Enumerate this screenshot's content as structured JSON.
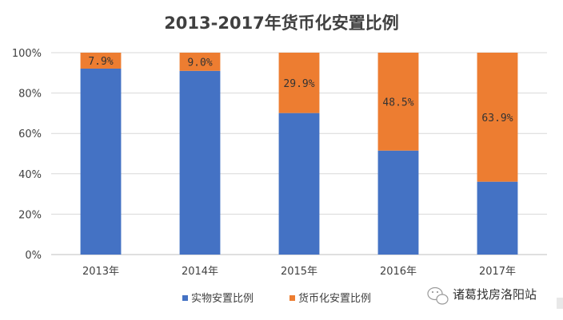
{
  "chart_data": {
    "type": "bar",
    "stacked": true,
    "title": "2013-2017年货币化安置比例",
    "categories": [
      "2013年",
      "2014年",
      "2015年",
      "2016年",
      "2017年"
    ],
    "series": [
      {
        "name": "实物安置比例",
        "color": "#4472c4",
        "values": [
          92.1,
          91.0,
          70.1,
          51.5,
          36.1
        ]
      },
      {
        "name": "货币化安置比例",
        "color": "#ed7d31",
        "values": [
          7.9,
          9.0,
          29.9,
          48.5,
          63.9
        ]
      }
    ],
    "data_labels": [
      "7.9%",
      "9.0%",
      "29.9%",
      "48.5%",
      "63.9%"
    ],
    "ylim": [
      0,
      100
    ],
    "yticks": [
      "0%",
      "20%",
      "40%",
      "60%",
      "80%",
      "100%"
    ],
    "grid": true,
    "legend": "bottom"
  },
  "watermark": {
    "text": "诸葛找房洛阳站",
    "icon": "wechat-icon"
  }
}
